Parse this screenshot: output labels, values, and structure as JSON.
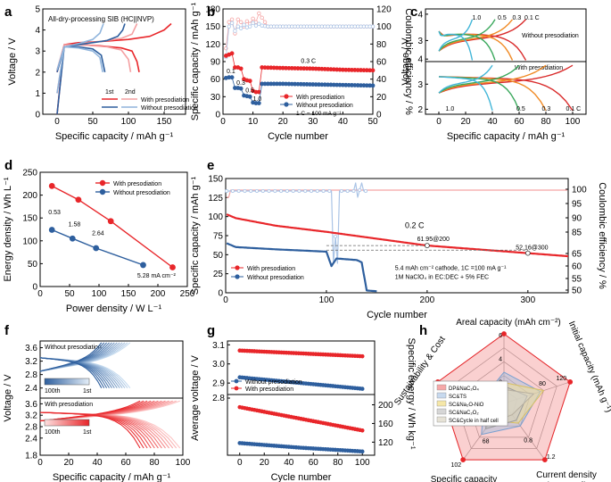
{
  "figure": {
    "panel_labels": [
      "a",
      "b",
      "c",
      "d",
      "e",
      "f",
      "g",
      "h"
    ],
    "colors": {
      "with": "#e8262a",
      "with_light": "#f4a0a2",
      "without": "#2e5f9e",
      "without_light": "#8fb4dc",
      "ce_light": "#aac4e6",
      "ce_red": "#f5a5a5"
    }
  },
  "chart_data": [
    {
      "id": "a",
      "type": "line",
      "title": "All-dry-processing SIB (HC||NVP)",
      "xlabel": "Specific capacity / mAh g⁻¹",
      "ylabel": "Voltage / V",
      "xlim": [
        -20,
        180
      ],
      "ylim": [
        0,
        5
      ],
      "xticks": [
        "0",
        "50",
        "100",
        "150"
      ],
      "yticks": [
        "0",
        "1",
        "2",
        "3",
        "4",
        "5"
      ],
      "legend_head": [
        "1st",
        "2nd"
      ],
      "legend": [
        "With presodiation",
        "Without presodiation"
      ],
      "series": [
        {
          "name": "With presodiation 1st charge",
          "x": [
            0,
            10,
            30,
            60,
            100,
            130,
            150,
            160
          ],
          "y": [
            0,
            3.3,
            3.4,
            3.45,
            3.55,
            3.7,
            4.0,
            4.3
          ]
        },
        {
          "name": "With presodiation 1st discharge",
          "x": [
            0,
            10,
            30,
            60,
            90,
            105,
            112,
            115
          ],
          "y": [
            2.0,
            3.3,
            3.3,
            3.25,
            3.15,
            3.0,
            2.5,
            2.0
          ]
        },
        {
          "name": "With presodiation 2nd charge",
          "x": [
            0,
            10,
            30,
            60,
            90,
            105,
            112
          ],
          "y": [
            1.0,
            3.2,
            3.35,
            3.45,
            3.6,
            3.8,
            4.3
          ]
        },
        {
          "name": "With presodiation 2nd discharge",
          "x": [
            0,
            10,
            40,
            70,
            90,
            100,
            103
          ],
          "y": [
            2.1,
            3.3,
            3.28,
            3.2,
            3.05,
            2.6,
            2.0
          ]
        },
        {
          "name": "Without presodiation 1st charge",
          "x": [
            0,
            10,
            40,
            70,
            85,
            92,
            95
          ],
          "y": [
            0,
            3.2,
            3.35,
            3.5,
            3.7,
            4.0,
            4.3
          ]
        },
        {
          "name": "Without presodiation 1st discharge",
          "x": [
            0,
            10,
            30,
            50,
            62,
            67
          ],
          "y": [
            2.0,
            3.2,
            3.2,
            3.1,
            2.8,
            2.0
          ]
        },
        {
          "name": "Without presodiation 2nd charge",
          "x": [
            0,
            10,
            30,
            50,
            60,
            65
          ],
          "y": [
            1.0,
            3.2,
            3.35,
            3.55,
            3.85,
            4.3
          ]
        },
        {
          "name": "Without presodiation 2nd discharge",
          "x": [
            0,
            10,
            30,
            50,
            60,
            64
          ],
          "y": [
            2.1,
            3.2,
            3.15,
            3.0,
            2.7,
            2.0
          ]
        }
      ]
    },
    {
      "id": "b",
      "type": "scatter",
      "xlabel": "Cycle number",
      "ylabel": "Specific capacity / mAh g⁻¹",
      "y2label": "Coulombic efficiency / %",
      "xlim": [
        0,
        50
      ],
      "ylim": [
        0,
        180
      ],
      "y2lim": [
        0,
        120
      ],
      "xticks": [
        "0",
        "10",
        "20",
        "30",
        "40",
        "50"
      ],
      "yticks": [
        "0",
        "30",
        "60",
        "90",
        "120",
        "150",
        "180"
      ],
      "y2ticks": [
        "0",
        "20",
        "40",
        "60",
        "80",
        "100",
        "120"
      ],
      "annotations": [
        "0.1",
        "0.3",
        "0.5",
        "1.0",
        "0.3 C",
        "1 C = 100 mA g⁻¹"
      ],
      "legend": [
        "With presodiation",
        "Without presodiation"
      ],
      "series": [
        {
          "name": "With presodiation capacity",
          "x": [
            1,
            2,
            3,
            4,
            5,
            6,
            7,
            8,
            9,
            10,
            11,
            12,
            13,
            20,
            30,
            40,
            50
          ],
          "values": [
            100,
            102,
            104,
            80,
            80,
            78,
            60,
            58,
            57,
            40,
            38,
            38,
            80,
            79,
            78,
            76,
            75
          ]
        },
        {
          "name": "Without presodiation capacity",
          "x": [
            1,
            2,
            3,
            4,
            5,
            6,
            7,
            8,
            9,
            10,
            11,
            12,
            13,
            20,
            30,
            40,
            50
          ],
          "values": [
            62,
            63,
            63,
            45,
            45,
            44,
            32,
            31,
            30,
            20,
            19,
            19,
            52,
            52,
            51,
            50,
            49
          ]
        },
        {
          "name": "With presodiation CE",
          "x": [
            1,
            2,
            3,
            4,
            5,
            6,
            7,
            8,
            9,
            10,
            11,
            12,
            13,
            15,
            20,
            30,
            40,
            50
          ],
          "values": [
            75,
            105,
            108,
            92,
            108,
            105,
            100,
            106,
            103,
            109,
            105,
            115,
            110,
            100,
            100,
            100,
            100,
            100
          ]
        },
        {
          "name": "Without presodiation CE",
          "x": [
            1,
            2,
            3,
            4,
            5,
            6,
            7,
            8,
            9,
            10,
            11,
            12,
            13,
            15,
            20,
            30,
            40,
            50
          ],
          "values": [
            65,
            100,
            104,
            95,
            100,
            98,
            102,
            99,
            100,
            104,
            101,
            103,
            101,
            100,
            100,
            100,
            100,
            100
          ]
        }
      ]
    },
    {
      "id": "c",
      "type": "line",
      "xlabel": "Specific capacity / mAh g⁻¹",
      "ylabel": "Voltage / V",
      "xlim": [
        -10,
        110
      ],
      "ylim": [
        1.8,
        4.2
      ],
      "xticks": [
        "0",
        "20",
        "40",
        "60",
        "80",
        "100"
      ],
      "yticks_top": [
        "3",
        "4"
      ],
      "yticks_bottom": [
        "2",
        "3",
        "4"
      ],
      "top_label": "Without presodiation",
      "bottom_label": "With presodiation",
      "top_rate_labels": [
        "1.0",
        "0.5",
        "0.3",
        "0.1 C"
      ],
      "bottom_rate_labels": [
        "1.0",
        "0.5",
        "0.3",
        "0.1 C"
      ],
      "series": [
        {
          "name": "Without 0.1 C",
          "capacity": 65
        },
        {
          "name": "Without 0.3 C",
          "capacity": 55
        },
        {
          "name": "Without 0.5 C",
          "capacity": 42
        },
        {
          "name": "Without 1.0 C",
          "capacity": 25
        },
        {
          "name": "With 0.1 C",
          "capacity": 100
        },
        {
          "name": "With 0.3 C",
          "capacity": 80
        },
        {
          "name": "With 0.5 C",
          "capacity": 60
        },
        {
          "name": "With 1.0 C",
          "capacity": 40
        }
      ]
    },
    {
      "id": "d",
      "type": "line",
      "xlabel": "Power density / W L⁻¹",
      "ylabel": "Energy density / Wh L⁻¹",
      "xlim": [
        0,
        250
      ],
      "ylim": [
        0,
        250
      ],
      "xticks": [
        "0",
        "50",
        "100",
        "150",
        "200",
        "250"
      ],
      "yticks": [
        "0",
        "50",
        "100",
        "150",
        "200",
        "250"
      ],
      "legend": [
        "With presodiation",
        "Without presodiation"
      ],
      "point_labels": [
        "0.53",
        "1.58",
        "2.64",
        "5.28 mA cm⁻²"
      ],
      "series": [
        {
          "name": "With presodiation",
          "x": [
            20,
            65,
            120,
            225
          ],
          "y": [
            220,
            190,
            143,
            42
          ]
        },
        {
          "name": "Without presodiation",
          "x": [
            20,
            55,
            95,
            175
          ],
          "y": [
            124,
            105,
            84,
            47
          ]
        }
      ]
    },
    {
      "id": "e",
      "type": "scatter",
      "xlabel": "Cycle number",
      "ylabel": "Specific capacity / mAh g⁻¹",
      "y2label": "Coulombic efficiency / %",
      "xlim": [
        0,
        340
      ],
      "ylim": [
        0,
        150
      ],
      "xticks": [
        "0",
        "100",
        "200",
        "300"
      ],
      "yticks": [
        "0",
        "25",
        "50",
        "75",
        "100",
        "125",
        "150"
      ],
      "y2ticks": [
        "50",
        "55",
        "60",
        "65",
        "85",
        "90",
        "95",
        "100"
      ],
      "annotations": [
        "0.2 C",
        "61.95@200",
        "52.16@300",
        "5.4 mAh cm⁻² cathode, 1C =100 mA g⁻¹",
        "1M NaClO₄ in EC:DEC + 5% FEC"
      ],
      "legend": [
        "With presodiation",
        "Without presodiation"
      ],
      "series": [
        {
          "name": "With presodiation capacity",
          "x": [
            1,
            10,
            50,
            100,
            150,
            200,
            250,
            300,
            340
          ],
          "values": [
            103,
            98,
            88,
            80,
            71,
            62,
            57,
            52,
            48
          ]
        },
        {
          "name": "Without presodiation capacity",
          "x": [
            1,
            10,
            50,
            100,
            105,
            110,
            120,
            130,
            135,
            140,
            150
          ],
          "values": [
            65,
            60,
            57,
            54,
            35,
            45,
            44,
            43,
            40,
            3,
            2
          ]
        }
      ]
    },
    {
      "id": "f",
      "type": "line",
      "xlabel": "Specific capacity / mAh g⁻¹",
      "ylabel": "Voltage / V",
      "xlim": [
        0,
        100
      ],
      "ylim": [
        1.8,
        3.8
      ],
      "xticks": [
        "0",
        "20",
        "40",
        "60",
        "80",
        "100"
      ],
      "yticks_top": [
        "2.4",
        "2.8",
        "3.2",
        "3.6"
      ],
      "yticks_bottom": [
        "1.8",
        "2.4",
        "2.8",
        "3.2",
        "3.6"
      ],
      "top_label": "Without presodiation",
      "bottom_label": "With presodiation",
      "colorbar_labels_top": [
        "100th",
        "1st"
      ],
      "colorbar_labels_bottom": [
        "100th",
        "1st"
      ]
    },
    {
      "id": "g",
      "type": "line",
      "xlabel": "Cycle number",
      "ylabel": "Average voltage / V",
      "y2label": "Specific energy / Wh kg⁻¹",
      "xlim": [
        -10,
        110
      ],
      "xticks": [
        "0",
        "20",
        "40",
        "60",
        "80",
        "100"
      ],
      "yticks": [
        "2.8",
        "2.9",
        "3.0",
        "3.1"
      ],
      "y2ticks": [
        "120",
        "160",
        "200"
      ],
      "legend": [
        "Without presodiation",
        "With presodiation"
      ],
      "series": [
        {
          "name": "With presodiation voltage",
          "x": [
            0,
            100
          ],
          "values": [
            3.07,
            3.04
          ]
        },
        {
          "name": "Without presodiation voltage",
          "x": [
            0,
            100
          ],
          "values": [
            2.93,
            2.87
          ]
        },
        {
          "name": "With presodiation energy",
          "x": [
            0,
            50,
            100
          ],
          "values": [
            195,
            170,
            145
          ]
        },
        {
          "name": "Without presodiation energy",
          "x": [
            0,
            50,
            100
          ],
          "values": [
            118,
            108,
            100
          ]
        }
      ]
    },
    {
      "id": "h",
      "type": "radar",
      "axes": [
        "Areal capacity (mAh cm⁻²)",
        "Initial capacity (mAh g⁻¹)",
        "Current density (mA cm⁻²)",
        "Specific capacity (mAh g⁻¹@50 cycles)",
        "Sustainability & Cost"
      ],
      "tick_labels": [
        "6",
        "4",
        "2",
        "120",
        "80",
        "1.2",
        "0.8",
        "102",
        "68"
      ],
      "legend": [
        "DP&NaC₂O₄",
        "SC&TS",
        "SC&Na₂O-NiO",
        "SC&NaC₂O₂",
        "SC&Cycle in half cell"
      ],
      "series": [
        {
          "name": "DP&NaC₂O₄",
          "values": [
            1.0,
            1.0,
            1.0,
            1.0,
            1.0
          ]
        },
        {
          "name": "SC&TS",
          "values": [
            0.45,
            0.55,
            0.4,
            0.55,
            0.3
          ]
        },
        {
          "name": "SC&Na₂O-NiO",
          "values": [
            0.3,
            0.6,
            0.35,
            0.3,
            0.25
          ]
        },
        {
          "name": "SC&NaC₂O₂",
          "values": [
            0.25,
            0.35,
            0.3,
            0.45,
            0.2
          ]
        },
        {
          "name": "SC&Cycle in half cell",
          "values": [
            0.2,
            0.45,
            0.2,
            0.35,
            0.15
          ]
        }
      ]
    }
  ]
}
